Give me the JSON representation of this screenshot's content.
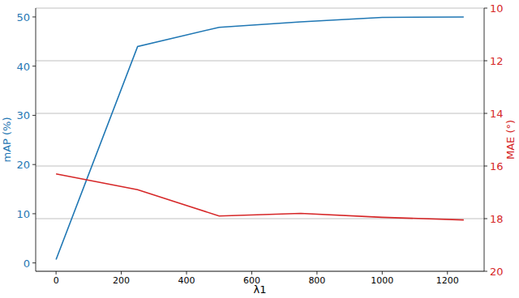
{
  "chart_data": {
    "type": "line",
    "x_label": "λ1",
    "y_label": "mAP (%)",
    "y2_label": "MAE (°)",
    "x": [
      0,
      250,
      500,
      750,
      1000,
      1250
    ],
    "series": [
      {
        "name": "mAP",
        "color": "#1f77b4",
        "values": [
          0.7,
          44,
          47.9,
          49,
          49.9,
          50
        ]
      },
      {
        "name": "MAE",
        "color": "#d62728",
        "axis": "y2",
        "values": [
          16.3,
          16.9,
          17.9,
          17.8,
          17.95,
          18.05
        ]
      }
    ],
    "xlim": [
      -62.5,
      1312.5
    ],
    "xticks": [
      0,
      200,
      400,
      600,
      800,
      1000,
      1200
    ],
    "ylim": [
      -1.7,
      51.8
    ],
    "yticks": [
      0,
      10,
      20,
      30,
      40,
      50
    ],
    "y2lim": [
      20,
      10
    ],
    "y2ticks": [
      10,
      12,
      14,
      16,
      18,
      20
    ],
    "grid": true
  }
}
